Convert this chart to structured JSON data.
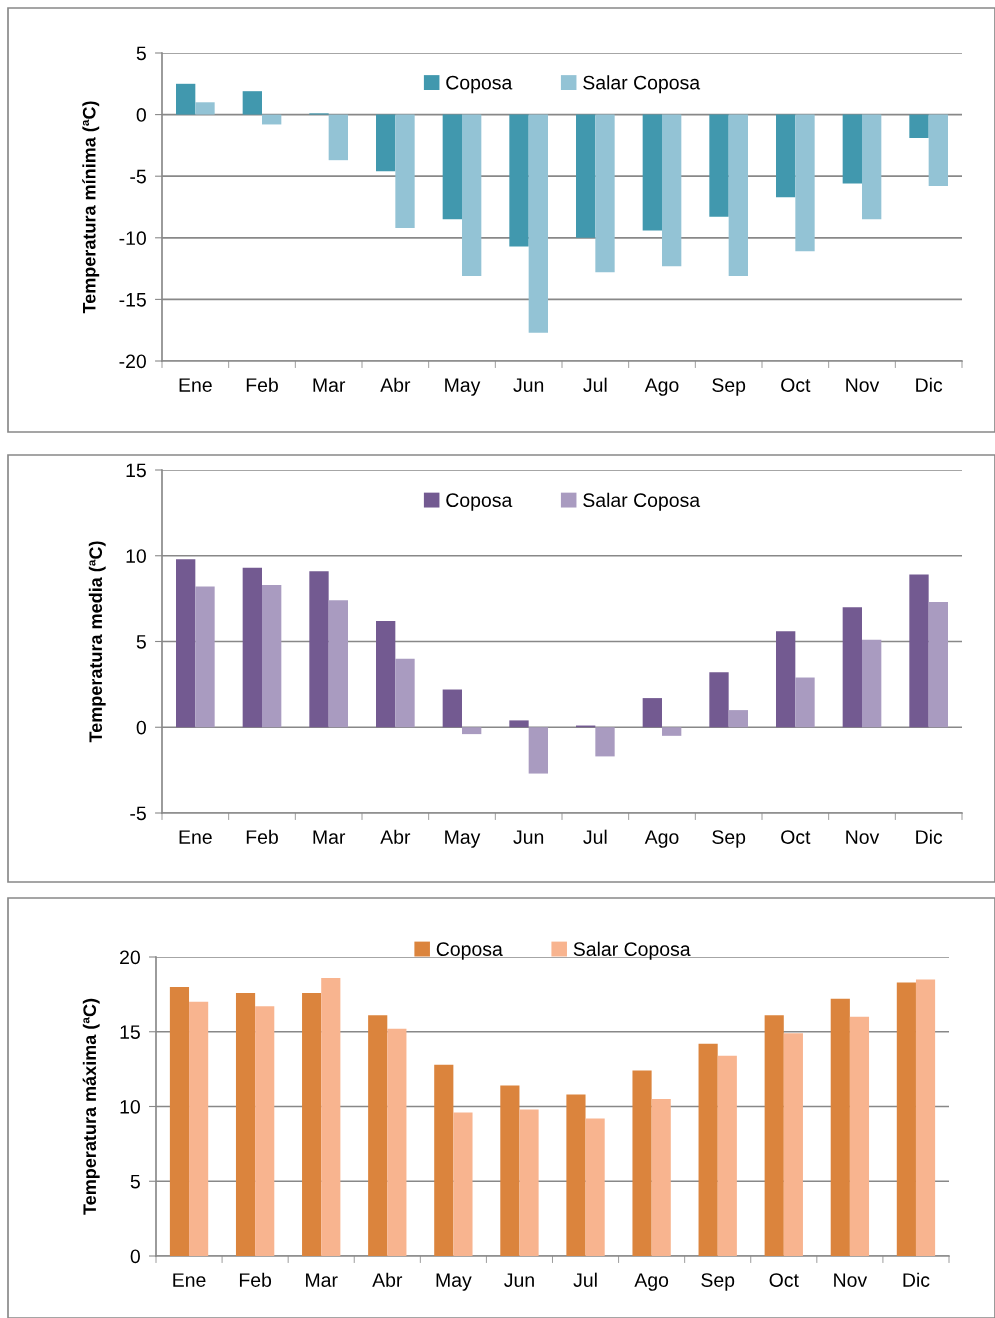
{
  "chart_data": [
    {
      "type": "bar",
      "ylabel": "Temperatura mínima (ªC)",
      "categories": [
        "Ene",
        "Feb",
        "Mar",
        "Abr",
        "May",
        "Jun",
        "Jul",
        "Ago",
        "Sep",
        "Oct",
        "Nov",
        "Dic"
      ],
      "series": [
        {
          "name": "Coposa",
          "color": "#4198ae",
          "values": [
            2.5,
            1.9,
            0.1,
            -4.6,
            -8.5,
            -10.7,
            -10.0,
            -9.4,
            -8.3,
            -6.7,
            -5.6,
            -1.9
          ]
        },
        {
          "name": "Salar Coposa",
          "color": "#93c3d5",
          "values": [
            1.0,
            -0.8,
            -3.7,
            -9.2,
            -13.1,
            -17.7,
            -12.8,
            -12.3,
            -13.1,
            -11.1,
            -8.5,
            -5.8
          ]
        }
      ],
      "ylim": [
        -20,
        5
      ],
      "yticks": [
        -20,
        -15,
        -10,
        -5,
        0,
        5
      ],
      "grid": "y",
      "legend": "top"
    },
    {
      "type": "bar",
      "ylabel": "Temperatura media (ªC)",
      "categories": [
        "Ene",
        "Feb",
        "Mar",
        "Abr",
        "May",
        "Jun",
        "Jul",
        "Ago",
        "Sep",
        "Oct",
        "Nov",
        "Dic"
      ],
      "series": [
        {
          "name": "Coposa",
          "color": "#735a91",
          "values": [
            9.8,
            9.3,
            9.1,
            6.2,
            2.2,
            0.4,
            0.1,
            1.7,
            3.2,
            5.6,
            7.0,
            8.9
          ]
        },
        {
          "name": "Salar Coposa",
          "color": "#a99bc0",
          "values": [
            8.2,
            8.3,
            7.4,
            4.0,
            -0.4,
            -2.7,
            -1.7,
            -0.5,
            1.0,
            2.9,
            5.1,
            7.3
          ]
        }
      ],
      "ylim": [
        -5,
        15
      ],
      "yticks": [
        -5,
        0,
        5,
        10,
        15
      ],
      "grid": "y",
      "legend": "top"
    },
    {
      "type": "bar",
      "ylabel": "Temperatura máxima (ªC)",
      "categories": [
        "Ene",
        "Feb",
        "Mar",
        "Abr",
        "May",
        "Jun",
        "Jul",
        "Ago",
        "Sep",
        "Oct",
        "Nov",
        "Dic"
      ],
      "series": [
        {
          "name": "Coposa",
          "color": "#db843d",
          "values": [
            18.0,
            17.6,
            17.6,
            16.1,
            12.8,
            11.4,
            10.8,
            12.4,
            14.2,
            16.1,
            17.2,
            18.3
          ]
        },
        {
          "name": "Salar Coposa",
          "color": "#f8b48f",
          "values": [
            17.0,
            16.7,
            18.6,
            15.2,
            9.6,
            9.8,
            9.2,
            10.5,
            13.4,
            14.9,
            16.0,
            18.5
          ]
        }
      ],
      "ylim": [
        0,
        20
      ],
      "yticks": [
        0,
        5,
        10,
        15,
        20
      ],
      "grid": "y",
      "legend": "top"
    }
  ]
}
